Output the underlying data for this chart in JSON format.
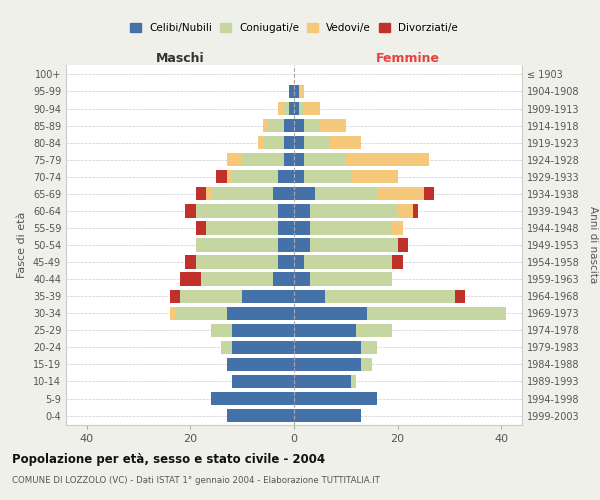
{
  "age_groups": [
    "0-4",
    "5-9",
    "10-14",
    "15-19",
    "20-24",
    "25-29",
    "30-34",
    "35-39",
    "40-44",
    "45-49",
    "50-54",
    "55-59",
    "60-64",
    "65-69",
    "70-74",
    "75-79",
    "80-84",
    "85-89",
    "90-94",
    "95-99",
    "100+"
  ],
  "birth_years": [
    "1999-2003",
    "1994-1998",
    "1989-1993",
    "1984-1988",
    "1979-1983",
    "1974-1978",
    "1969-1973",
    "1964-1968",
    "1959-1963",
    "1954-1958",
    "1949-1953",
    "1944-1948",
    "1939-1943",
    "1934-1938",
    "1929-1933",
    "1924-1928",
    "1919-1923",
    "1914-1918",
    "1909-1913",
    "1904-1908",
    "≤ 1903"
  ],
  "colors": {
    "celibi": "#4472a8",
    "coniugati": "#c5d6a0",
    "vedovi": "#f5c87a",
    "divorziati": "#c0312b"
  },
  "maschi": {
    "celibi": [
      13,
      16,
      12,
      13,
      12,
      12,
      13,
      10,
      4,
      3,
      3,
      3,
      3,
      4,
      3,
      2,
      2,
      2,
      1,
      1,
      0
    ],
    "coniugati": [
      0,
      0,
      0,
      0,
      2,
      4,
      10,
      12,
      14,
      16,
      16,
      14,
      16,
      12,
      9,
      8,
      4,
      3,
      1,
      0,
      0
    ],
    "vedovi": [
      0,
      0,
      0,
      0,
      0,
      0,
      1,
      0,
      0,
      0,
      0,
      0,
      0,
      1,
      1,
      3,
      1,
      1,
      1,
      0,
      0
    ],
    "divorziati": [
      0,
      0,
      0,
      0,
      0,
      0,
      0,
      2,
      4,
      2,
      0,
      2,
      2,
      2,
      2,
      0,
      0,
      0,
      0,
      0,
      0
    ]
  },
  "femmine": {
    "celibi": [
      13,
      16,
      11,
      13,
      13,
      12,
      14,
      6,
      3,
      2,
      3,
      3,
      3,
      4,
      2,
      2,
      2,
      2,
      1,
      1,
      0
    ],
    "coniugati": [
      0,
      0,
      1,
      2,
      3,
      7,
      27,
      25,
      16,
      17,
      17,
      16,
      17,
      12,
      9,
      8,
      5,
      3,
      1,
      0,
      0
    ],
    "vedovi": [
      0,
      0,
      0,
      0,
      0,
      0,
      0,
      0,
      0,
      0,
      0,
      2,
      3,
      9,
      9,
      16,
      6,
      5,
      3,
      1,
      0
    ],
    "divorziati": [
      0,
      0,
      0,
      0,
      0,
      0,
      0,
      2,
      0,
      2,
      2,
      0,
      1,
      2,
      0,
      0,
      0,
      0,
      0,
      0,
      0
    ]
  },
  "title": "Popolazione per età, sesso e stato civile - 2004",
  "subtitle": "COMUNE DI LOZZOLO (VC) - Dati ISTAT 1° gennaio 2004 - Elaborazione TUTTITALIA.IT",
  "xlabel_left": "Maschi",
  "xlabel_right": "Femmine",
  "ylabel_left": "Fasce di età",
  "ylabel_right": "Anni di nascita",
  "xlim": 44,
  "legend_labels": [
    "Celibi/Nubili",
    "Coniugati/e",
    "Vedovi/e",
    "Divorziati/e"
  ],
  "background_color": "#f0f0eb",
  "plot_bg_color": "#ffffff",
  "grid_color": "#cccccc"
}
